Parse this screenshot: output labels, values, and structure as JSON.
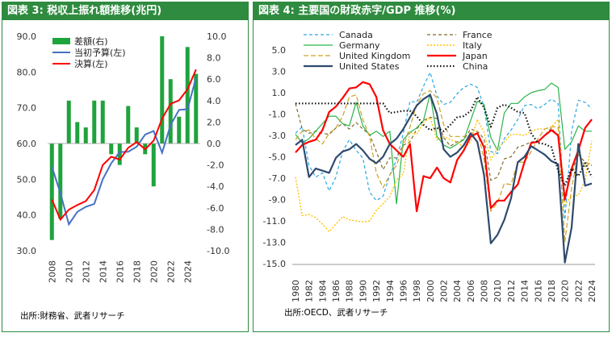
{
  "chart_data": [
    {
      "type": "bar+line",
      "title": "図表 3: 税収上振れ額推移(兆円)",
      "source": "出所:財務省、武者リサーチ",
      "left_axis": {
        "ylim": [
          30,
          90
        ],
        "ticks": [
          "30.0",
          "40.0",
          "50.0",
          "60.0",
          "70.0",
          "80.0",
          "90.0"
        ]
      },
      "right_axis": {
        "ylim": [
          -10,
          10
        ],
        "ticks": [
          "-10.0",
          "-8.0",
          "-6.0",
          "-4.0",
          "-2.0",
          "0.0",
          "2.0",
          "4.0",
          "6.0",
          "8.0",
          "10.0"
        ]
      },
      "x_ticks": [
        "2008",
        "2010",
        "2012",
        "2014",
        "2016",
        "2018",
        "2020",
        "2022",
        "2024"
      ],
      "years": [
        2008,
        2009,
        2010,
        2011,
        2012,
        2013,
        2014,
        2015,
        2016,
        2017,
        2018,
        2019,
        2020,
        2021,
        2022,
        2023,
        2024,
        2025
      ],
      "series": [
        {
          "name": "差額(右)",
          "type": "bar",
          "axis": "right",
          "color": "#1fa33c",
          "values": [
            -9.0,
            -7.0,
            4.0,
            2.0,
            1.5,
            4.0,
            4.0,
            -1.0,
            -2.0,
            3.5,
            1.5,
            -1.0,
            -4.0,
            10.0,
            6.0,
            2.5,
            9.0,
            6.5
          ]
        },
        {
          "name": "当初予算(左)",
          "type": "line",
          "axis": "left",
          "color": "#4472c4",
          "values": [
            53.5,
            46.1,
            37.4,
            40.9,
            42.3,
            43.1,
            50.0,
            54.5,
            57.6,
            57.7,
            59.1,
            62.5,
            63.5,
            57.4,
            65.2,
            69.4,
            69.6,
            78.4
          ]
        },
        {
          "name": "決算(左)",
          "type": "line",
          "axis": "left",
          "color": "#ff0000",
          "values": [
            44.3,
            38.7,
            41.5,
            42.8,
            43.9,
            47.0,
            54.0,
            56.3,
            55.5,
            58.8,
            60.4,
            58.4,
            60.8,
            67.0,
            71.1,
            72.1,
            75.2,
            80.7
          ]
        }
      ]
    },
    {
      "type": "line",
      "title": "図表 4: 主要国の財政赤字/GDP 推移(%)",
      "source": "出所:OECD、武者リサーチ",
      "ylim": [
        -15,
        5
      ],
      "y_ticks": [
        "-15.0",
        "-13.0",
        "-11.0",
        "-9.0",
        "-7.0",
        "-5.0",
        "-3.0",
        "-1.0",
        "1.0",
        "3.0",
        "5.0"
      ],
      "x_ticks": [
        "1980",
        "1982",
        "1984",
        "1986",
        "1988",
        "1990",
        "1992",
        "1994",
        "1996",
        "1998",
        "2000",
        "2002",
        "2004",
        "2006",
        "2008",
        "2010",
        "2012",
        "2014",
        "2016",
        "2018",
        "2020",
        "2022",
        "2024"
      ],
      "years_start": 1980,
      "series": [
        {
          "name": "Canada",
          "color": "#2aa7e0",
          "dash": "4,3",
          "width": 1.2,
          "values": [
            -2.8,
            -2.2,
            -5.8,
            -6.9,
            -6.5,
            -8.2,
            -6.9,
            -4.5,
            -3.4,
            -4.4,
            -5.1,
            -8.3,
            -9.1,
            -8.7,
            -6.7,
            -5.3,
            -2.8,
            0.2,
            0.1,
            1.6,
            2.9,
            0.7,
            -0.1,
            0.1,
            0.9,
            1.5,
            1.8,
            1.5,
            -0.3,
            -4.5,
            -4.7,
            -3.3,
            -2.5,
            -1.5,
            -0.2,
            -0.1,
            -0.5,
            -0.1,
            0.4,
            0.0,
            -10.9,
            -2.6,
            0.3,
            0.1,
            -0.5
          ]
        },
        {
          "name": "France",
          "color": "#7f6a2b",
          "dash": "4,3",
          "width": 1.2,
          "values": [
            0.0,
            -2.4,
            -2.8,
            -2.6,
            -2.8,
            -2.9,
            -2.3,
            -1.9,
            -2.4,
            -1.8,
            -2.4,
            -2.9,
            -4.5,
            -6.2,
            -5.1,
            -5.1,
            -3.9,
            -3.6,
            -2.4,
            -1.6,
            -1.3,
            -1.4,
            -3.2,
            -4.0,
            -3.6,
            -3.4,
            -2.4,
            -2.6,
            -3.3,
            -7.2,
            -6.9,
            -5.2,
            -5.0,
            -4.1,
            -3.9,
            -3.6,
            -3.6,
            -3.0,
            -2.3,
            -3.1,
            -9.0,
            -6.5,
            -4.8,
            -5.5,
            -5.8
          ]
        },
        {
          "name": "Germany",
          "color": "#2bb34a",
          "dash": "",
          "width": 1.2,
          "values": [
            -2.9,
            -3.7,
            -3.3,
            -2.6,
            -1.9,
            -1.2,
            -1.2,
            -1.9,
            -2.1,
            0.1,
            -2.1,
            -3.0,
            -2.6,
            -3.1,
            -2.6,
            -9.4,
            -3.4,
            -2.7,
            -2.3,
            -1.6,
            0.9,
            -3.1,
            -3.9,
            -4.2,
            -3.8,
            -3.4,
            -1.6,
            0.2,
            -0.1,
            -3.2,
            -4.4,
            -0.9,
            0.0,
            0.0,
            0.6,
            1.0,
            1.2,
            1.3,
            1.9,
            1.5,
            -4.3,
            -3.6,
            -2.1,
            -2.6,
            -2.6
          ]
        },
        {
          "name": "Italy",
          "color": "#ffc000",
          "dash": "2,2",
          "width": 1.4,
          "values": [
            -6.9,
            -10.5,
            -10.4,
            -10.7,
            -11.3,
            -12.0,
            -11.3,
            -10.6,
            -10.9,
            -11.0,
            -11.1,
            -11.0,
            -10.0,
            -9.4,
            -8.7,
            -7.2,
            -6.6,
            -2.7,
            -2.9,
            -1.8,
            -1.3,
            -3.4,
            -3.1,
            -3.4,
            -3.6,
            -4.2,
            -3.6,
            -1.5,
            -2.7,
            -5.3,
            -4.2,
            -3.6,
            -2.9,
            -2.9,
            -3.0,
            -2.6,
            -2.4,
            -2.4,
            -2.2,
            -1.5,
            -9.5,
            -8.7,
            -8.6,
            -7.2,
            -3.5
          ]
        },
        {
          "name": "United Kingdom",
          "color": "#c9a227",
          "dash": "6,3",
          "width": 1.2,
          "values": [
            -3.4,
            -2.6,
            -2.5,
            -3.3,
            -3.8,
            -2.8,
            -2.3,
            -1.2,
            0.6,
            0.8,
            -1.5,
            -3.1,
            -6.5,
            -7.9,
            -6.7,
            -5.8,
            -4.0,
            -2.2,
            -0.1,
            0.9,
            1.2,
            0.5,
            -2.0,
            -3.1,
            -3.1,
            -3.1,
            -2.8,
            -2.6,
            -5.2,
            -10.1,
            -9.3,
            -7.5,
            -7.6,
            -5.5,
            -5.5,
            -4.5,
            -3.3,
            -2.4,
            -2.2,
            -2.2,
            -13.0,
            -7.9,
            -4.6,
            -6.0,
            -5.4
          ]
        },
        {
          "name": "Japan",
          "color": "#ff0000",
          "dash": "",
          "width": 2.2,
          "values": [
            -4.6,
            -3.9,
            -3.6,
            -3.4,
            -2.5,
            -0.8,
            -0.3,
            0.5,
            1.4,
            1.5,
            2.0,
            1.8,
            0.6,
            -2.5,
            -3.8,
            -4.4,
            -5.0,
            -3.8,
            -10.1,
            -6.8,
            -7.0,
            -6.0,
            -7.0,
            -7.4,
            -5.3,
            -4.4,
            -3.1,
            -2.8,
            -4.1,
            -9.8,
            -9.1,
            -9.1,
            -8.3,
            -7.6,
            -5.5,
            -3.7,
            -3.6,
            -3.0,
            -2.5,
            -3.0,
            -9.0,
            -6.1,
            -4.4,
            -2.3,
            -1.5
          ]
        },
        {
          "name": "United States",
          "color": "#2f4a6e",
          "dash": "",
          "width": 2.2,
          "values": [
            -3.9,
            -3.4,
            -6.9,
            -6.1,
            -6.3,
            -6.5,
            -5.1,
            -4.5,
            -4.3,
            -3.8,
            -4.4,
            -5.2,
            -5.6,
            -5.0,
            -3.8,
            -3.3,
            -2.4,
            -1.3,
            -0.2,
            0.4,
            0.8,
            -1.0,
            -4.3,
            -5.0,
            -4.6,
            -3.9,
            -2.8,
            -3.6,
            -6.7,
            -13.1,
            -12.3,
            -10.9,
            -8.9,
            -5.5,
            -5.0,
            -4.0,
            -4.4,
            -4.8,
            -5.4,
            -5.7,
            -14.9,
            -11.6,
            -3.8,
            -7.7,
            -7.5
          ]
        },
        {
          "name": "China",
          "color": "#111111",
          "dash": "1.5,2.5",
          "width": 2.2,
          "values": [
            0.0,
            0.0,
            0.0,
            0.0,
            0.0,
            0.0,
            0.0,
            0.0,
            0.0,
            0.0,
            0.0,
            0.0,
            0.0,
            0.0,
            -0.9,
            -0.8,
            -0.7,
            -0.7,
            -1.2,
            -2.0,
            -2.5,
            -2.3,
            -2.6,
            -2.0,
            -1.3,
            -1.2,
            -0.7,
            0.6,
            -0.4,
            -2.2,
            -0.4,
            -0.1,
            -0.4,
            -0.8,
            -0.9,
            -2.8,
            -3.7,
            -3.8,
            -4.1,
            -6.3,
            -7.7,
            -6.1,
            -6.8,
            -5.6,
            -6.9
          ]
        }
      ]
    }
  ]
}
